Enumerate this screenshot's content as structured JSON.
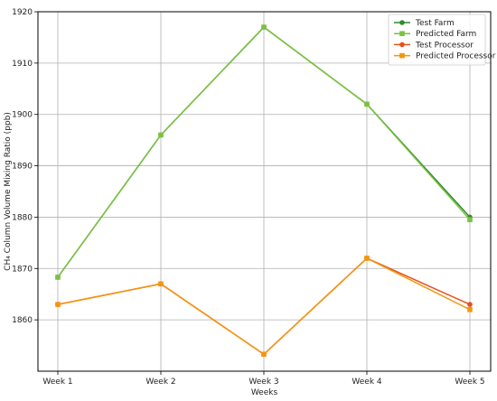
{
  "chart_data": {
    "type": "line",
    "categories": [
      "Week 1",
      "Week 2",
      "Week 3",
      "Week 4",
      "Week 5"
    ],
    "xlabel": "Weeks",
    "ylabel": "CH₄ Column Volume Mixing Ratio (ppb)",
    "ylim": [
      1850,
      1920
    ],
    "yticks": [
      1860,
      1870,
      1880,
      1890,
      1900,
      1910,
      1920
    ],
    "grid": true,
    "legend_position": "top-right",
    "series": [
      {
        "name": "Test Farm",
        "color": "#2e8b2e",
        "marker": "circle",
        "values": [
          1868.3,
          1896.0,
          1917.0,
          1902.0,
          1880.0
        ]
      },
      {
        "name": "Predicted Farm",
        "color": "#7dc142",
        "marker": "square",
        "values": [
          1868.3,
          1896.0,
          1917.0,
          1902.0,
          1879.5
        ]
      },
      {
        "name": "Test Processor",
        "color": "#e8501a",
        "marker": "circle",
        "values": [
          1863.0,
          1867.0,
          1853.3,
          1872.0,
          1863.0
        ]
      },
      {
        "name": "Predicted Processor",
        "color": "#f5950f",
        "marker": "square",
        "values": [
          1863.0,
          1867.0,
          1853.3,
          1872.0,
          1862.0
        ]
      }
    ]
  }
}
